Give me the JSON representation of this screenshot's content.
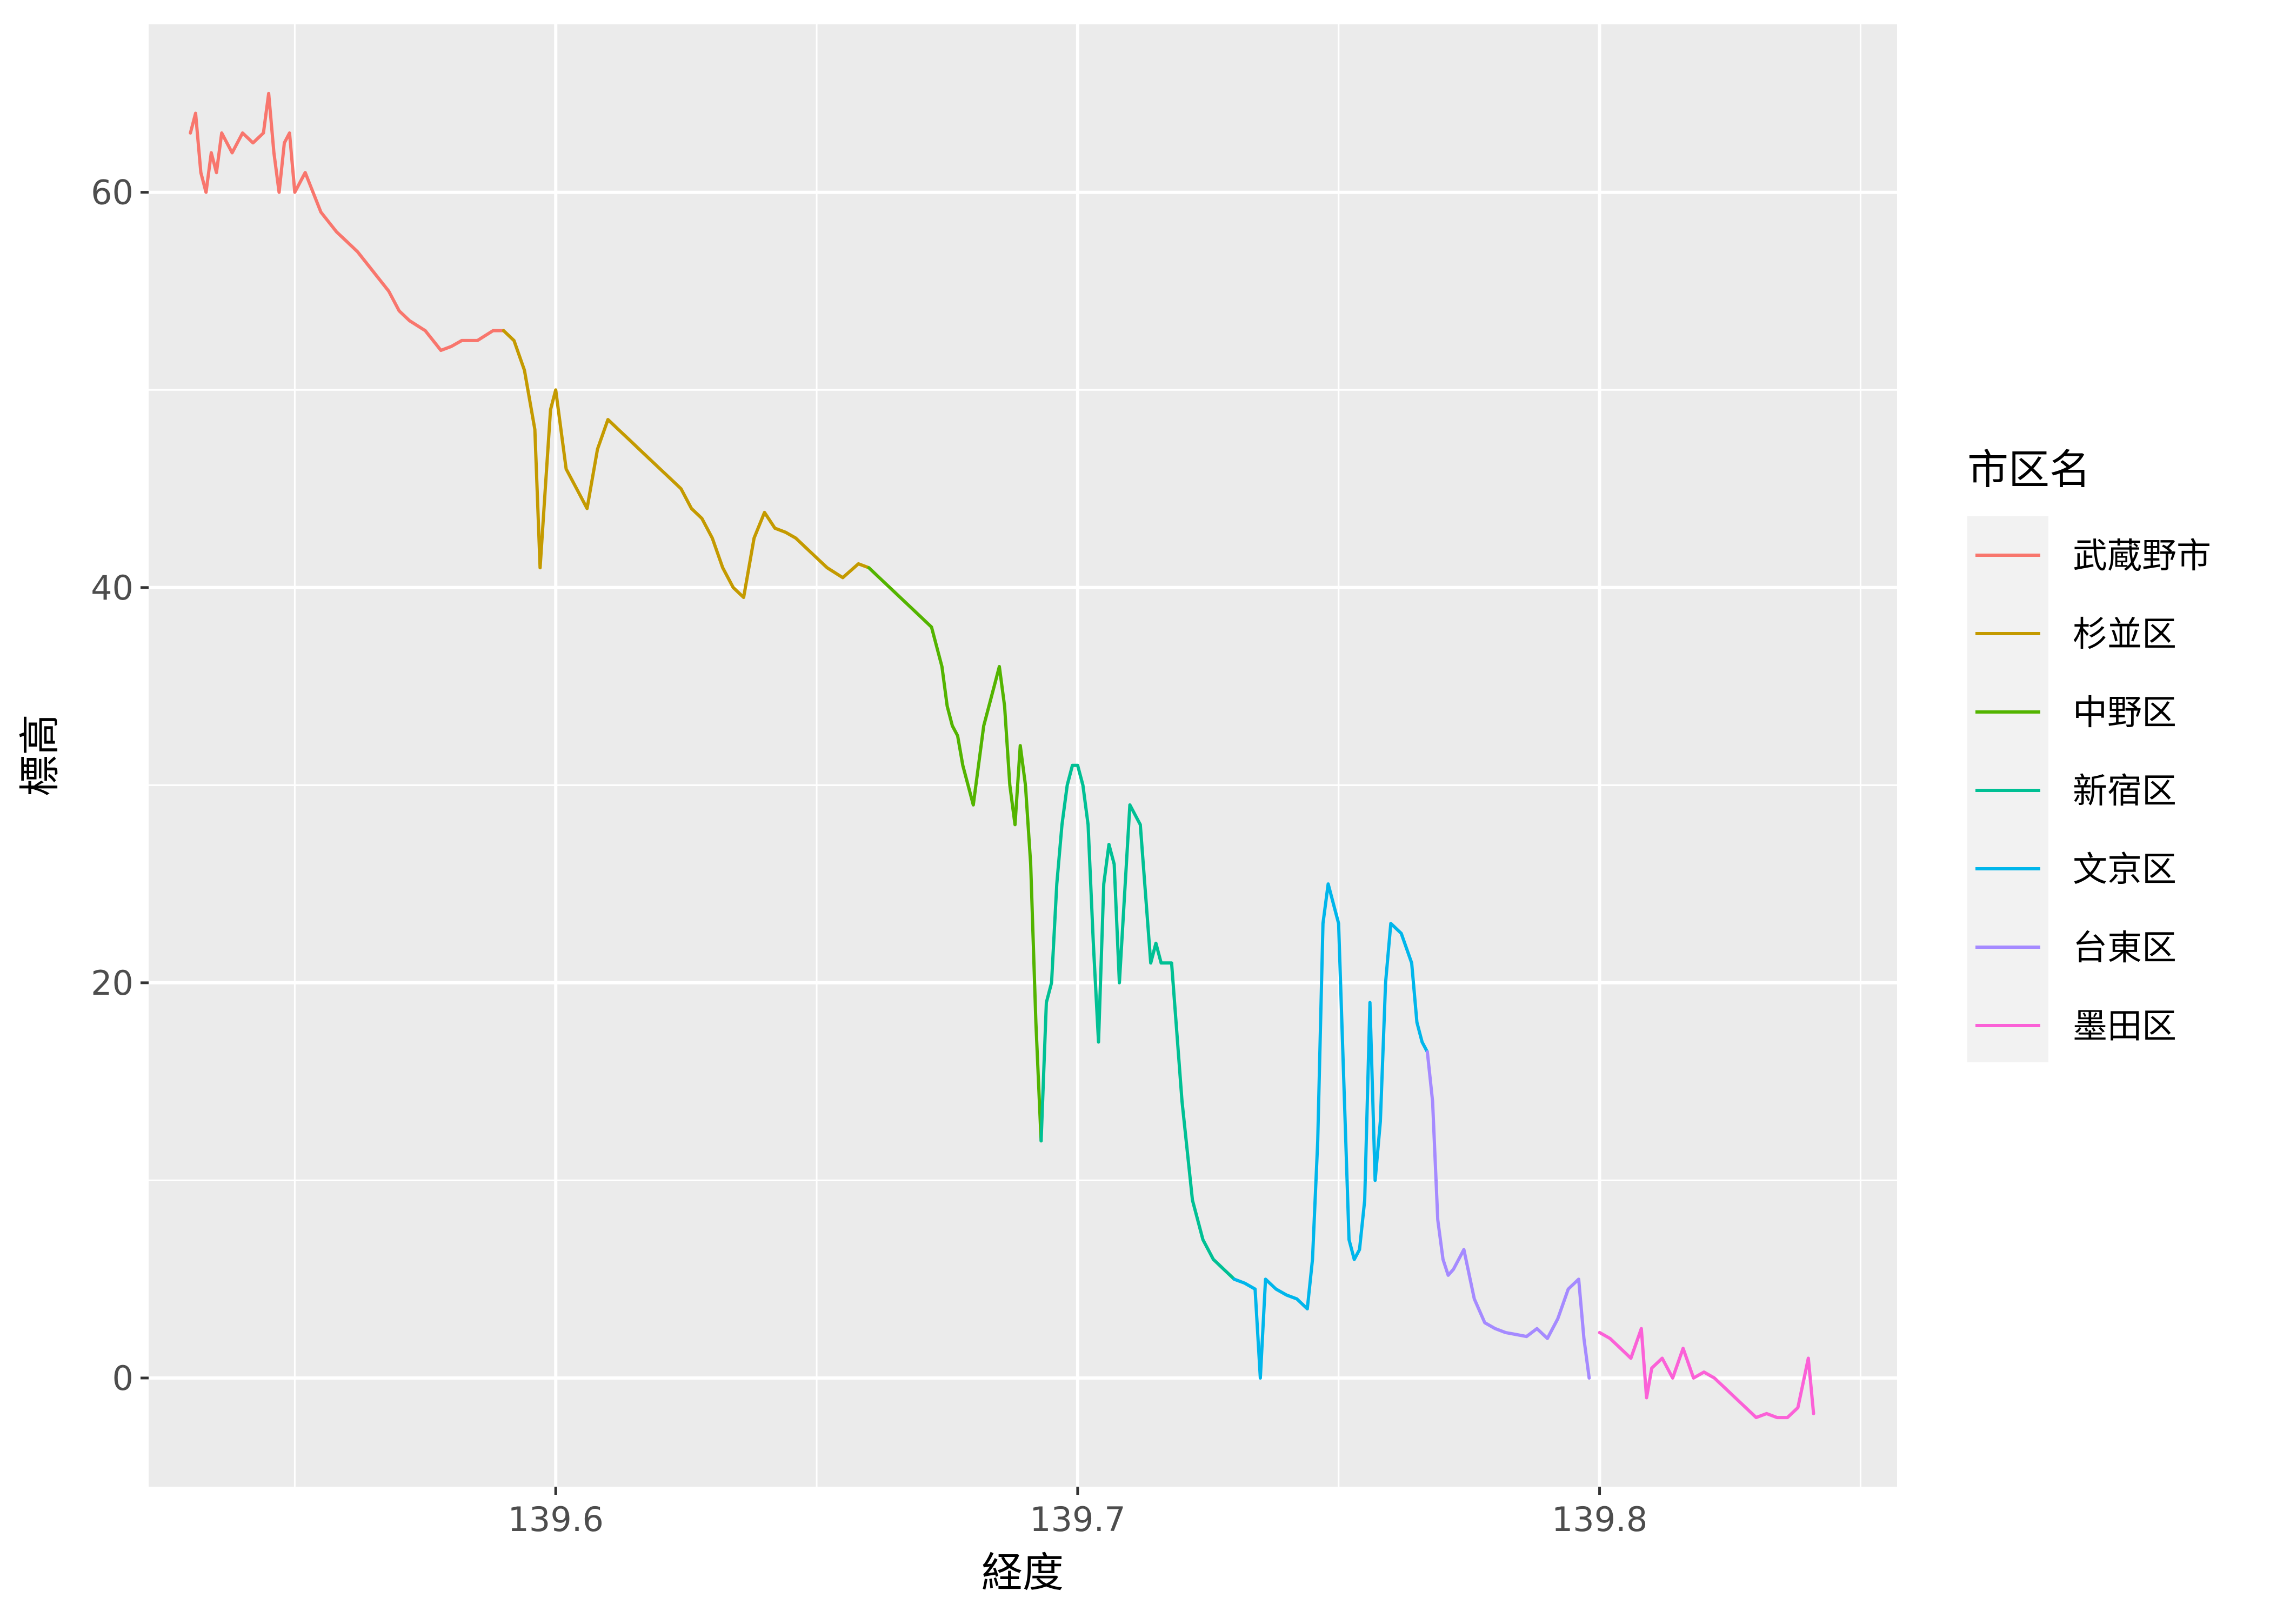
{
  "chart_data": {
    "type": "line",
    "title": "",
    "xlabel": "経度",
    "ylabel": "標高",
    "xlim": [
      139.522,
      139.857
    ],
    "ylim": [
      -5.5,
      68.5
    ],
    "x_ticks": [
      139.6,
      139.7,
      139.8
    ],
    "x_tick_labels": [
      "139.6",
      "139.7",
      "139.8"
    ],
    "x_minor_ticks": [
      139.55,
      139.65,
      139.75,
      139.85
    ],
    "y_ticks": [
      0,
      20,
      40,
      60
    ],
    "y_tick_labels": [
      "0",
      "20",
      "40",
      "60"
    ],
    "y_minor_ticks": [
      10,
      30,
      50
    ],
    "grid": true,
    "legend": {
      "title": "市区名",
      "position": "right"
    },
    "series": [
      {
        "name": "武蔵野市",
        "color": "#F8766D",
        "x": [
          139.53,
          139.531,
          139.532,
          139.533,
          139.534,
          139.535,
          139.536,
          139.538,
          139.54,
          139.542,
          139.544,
          139.545,
          139.546,
          139.547,
          139.548,
          139.549,
          139.55,
          139.552,
          139.555,
          139.558,
          139.56,
          139.562,
          139.565,
          139.568,
          139.57,
          139.572,
          139.575,
          139.578,
          139.58,
          139.582,
          139.585,
          139.588,
          139.59
        ],
        "y": [
          63,
          64,
          61,
          60,
          62,
          61,
          63,
          62,
          63,
          62.5,
          63,
          65,
          62,
          60,
          62.5,
          63,
          60,
          61,
          59,
          58,
          57.5,
          57,
          56,
          55,
          54,
          53.5,
          53,
          52,
          52.2,
          52.5,
          52.5,
          53,
          53
        ]
      },
      {
        "name": "杉並区",
        "color": "#C49A00",
        "x": [
          139.59,
          139.592,
          139.594,
          139.596,
          139.597,
          139.598,
          139.599,
          139.6,
          139.602,
          139.604,
          139.606,
          139.608,
          139.61,
          139.612,
          139.614,
          139.616,
          139.618,
          139.62,
          139.622,
          139.624,
          139.626,
          139.628,
          139.63,
          139.632,
          139.634,
          139.636,
          139.638,
          139.64,
          139.642,
          139.644,
          139.646,
          139.648,
          139.65,
          139.652,
          139.655,
          139.658,
          139.66
        ],
        "y": [
          53,
          52.5,
          51,
          48,
          41,
          45,
          49,
          50,
          46,
          45,
          44,
          47,
          48.5,
          48,
          47.5,
          47,
          46.5,
          46,
          45.5,
          45,
          44,
          43.5,
          42.5,
          41,
          40,
          39.5,
          42.5,
          43.8,
          43,
          42.8,
          42.5,
          42,
          41.5,
          41,
          40.5,
          41.2,
          41
        ]
      },
      {
        "name": "中野区",
        "color": "#53B400",
        "x": [
          139.66,
          139.662,
          139.664,
          139.666,
          139.668,
          139.67,
          139.672,
          139.674,
          139.675,
          139.676,
          139.677,
          139.678,
          139.68,
          139.682,
          139.684,
          139.685,
          139.686,
          139.687,
          139.688,
          139.689,
          139.69,
          139.691,
          139.692,
          139.693
        ],
        "y": [
          41,
          40.5,
          40,
          39.5,
          39,
          38.5,
          38,
          36,
          34,
          33,
          32.5,
          31,
          29,
          33,
          35,
          36,
          34,
          30,
          28,
          32,
          30,
          26,
          18,
          12
        ]
      },
      {
        "name": "新宿区",
        "color": "#00C094",
        "x": [
          139.693,
          139.694,
          139.695,
          139.696,
          139.697,
          139.698,
          139.699,
          139.7,
          139.701,
          139.702,
          139.703,
          139.704,
          139.705,
          139.706,
          139.707,
          139.708,
          139.71,
          139.712,
          139.714,
          139.715,
          139.716,
          139.718,
          139.72,
          139.722,
          139.724,
          139.726,
          139.728,
          139.73
        ],
        "y": [
          12,
          19,
          20,
          25,
          28,
          30,
          31,
          31,
          30,
          28,
          22,
          17,
          25,
          27,
          26,
          20,
          29,
          28,
          21,
          22,
          21,
          21,
          14,
          9,
          7,
          6,
          5.5,
          5
        ]
      },
      {
        "name": "文京区",
        "color": "#00B6EB",
        "x": [
          139.73,
          139.732,
          139.734,
          139.735,
          139.736,
          139.738,
          139.74,
          139.742,
          139.744,
          139.745,
          139.746,
          139.747,
          139.748,
          139.75,
          139.752,
          139.753,
          139.754,
          139.755,
          139.756,
          139.757,
          139.758,
          139.759,
          139.76,
          139.762,
          139.764,
          139.765,
          139.766,
          139.767
        ],
        "y": [
          5,
          4.8,
          4.5,
          0,
          5,
          4.5,
          4.2,
          4,
          3.5,
          6,
          12,
          23,
          25,
          23,
          7,
          6,
          6.5,
          9,
          19,
          10,
          13,
          20,
          23,
          22.5,
          21,
          18,
          17,
          16.5
        ]
      },
      {
        "name": "台東区",
        "color": "#A58AFF",
        "x": [
          139.767,
          139.768,
          139.769,
          139.77,
          139.771,
          139.772,
          139.774,
          139.776,
          139.778,
          139.78,
          139.782,
          139.784,
          139.786,
          139.788,
          139.79,
          139.792,
          139.794,
          139.796,
          139.797,
          139.798
        ],
        "y": [
          16.5,
          14,
          8,
          6,
          5.2,
          5.5,
          6.5,
          4,
          2.8,
          2.5,
          2.3,
          2.2,
          2.1,
          2.5,
          2,
          3,
          4.5,
          5,
          2,
          0
        ]
      },
      {
        "name": "墨田区",
        "color": "#FB61D7",
        "x": [
          139.8,
          139.802,
          139.804,
          139.806,
          139.808,
          139.809,
          139.81,
          139.812,
          139.814,
          139.816,
          139.818,
          139.82,
          139.822,
          139.824,
          139.826,
          139.828,
          139.83,
          139.832,
          139.834,
          139.836,
          139.838,
          139.84,
          139.841
        ],
        "y": [
          2.3,
          2,
          1.5,
          1,
          2.5,
          -1,
          0.5,
          1,
          0,
          1.5,
          0,
          0.3,
          0,
          -0.5,
          -1,
          -1.5,
          -2,
          -1.8,
          -2,
          -2,
          -1.5,
          1,
          -1.8
        ]
      }
    ]
  }
}
